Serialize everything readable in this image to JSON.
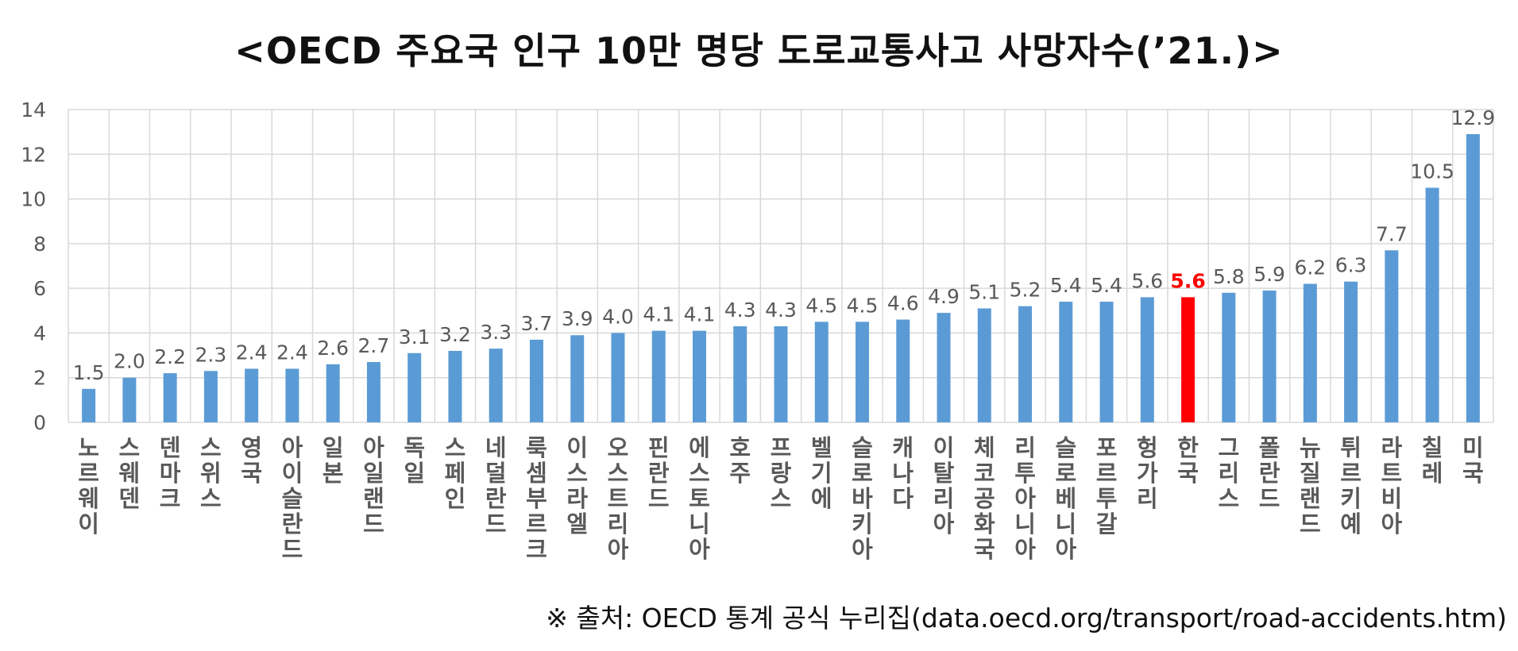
{
  "title": "<OECD 주요국 인구 10만 명당 도로교통사고 사망자수(’21.)>",
  "source": "※ 출처: OECD 통계 공식 누리집(data.oecd.org/transport/road-accidents.htm)",
  "chart_data": {
    "type": "bar",
    "title": "<OECD 주요국 인구 10만 명당 도로교통사고 사망자수(’21.)>",
    "xlabel": "",
    "ylabel": "",
    "ylim": [
      0,
      14
    ],
    "yticks": [
      0,
      2,
      4,
      6,
      8,
      10,
      12,
      14
    ],
    "grid": true,
    "legend": "none",
    "categories": [
      "노르웨이",
      "스웨덴",
      "덴마크",
      "스위스",
      "영국",
      "아이슬란드",
      "일본",
      "아일랜드",
      "독일",
      "스페인",
      "네덜란드",
      "룩셈부르크",
      "이스라엘",
      "오스트리아",
      "핀란드",
      "에스토니아",
      "호주",
      "프랑스",
      "벨기에",
      "슬로바키아",
      "캐나다",
      "이탈리아",
      "체코공화국",
      "리투아니아",
      "슬로베니아",
      "포르투갈",
      "헝가리",
      "한국",
      "그리스",
      "폴란드",
      "뉴질랜드",
      "튀르키예",
      "라트비아",
      "칠레",
      "미국"
    ],
    "values": [
      1.5,
      2.0,
      2.2,
      2.3,
      2.4,
      2.4,
      2.6,
      2.7,
      3.1,
      3.2,
      3.3,
      3.7,
      3.9,
      4.0,
      4.1,
      4.1,
      4.3,
      4.3,
      4.5,
      4.5,
      4.6,
      4.9,
      5.1,
      5.2,
      5.4,
      5.4,
      5.6,
      5.6,
      5.8,
      5.9,
      6.2,
      6.3,
      7.7,
      10.5,
      12.9
    ],
    "labels": [
      "1.5",
      "2.0",
      "2.2",
      "2.3",
      "2.4",
      "2.4",
      "2.6",
      "2.7",
      "3.1",
      "3.2",
      "3.3",
      "3.7",
      "3.9",
      "4.0",
      "4.1",
      "4.1",
      "4.3",
      "4.3",
      "4.5",
      "4.5",
      "4.6",
      "4.9",
      "5.1",
      "5.2",
      "5.4",
      "5.4",
      "5.6",
      "5.6",
      "5.8",
      "5.9",
      "6.2",
      "6.3",
      "7.7",
      "10.5",
      "12.9"
    ],
    "highlight_index": 27,
    "colors": {
      "bar": "#5b9bd5",
      "highlight": "#ff0000",
      "grid": "#d9d9d9",
      "text": "#595959"
    }
  }
}
